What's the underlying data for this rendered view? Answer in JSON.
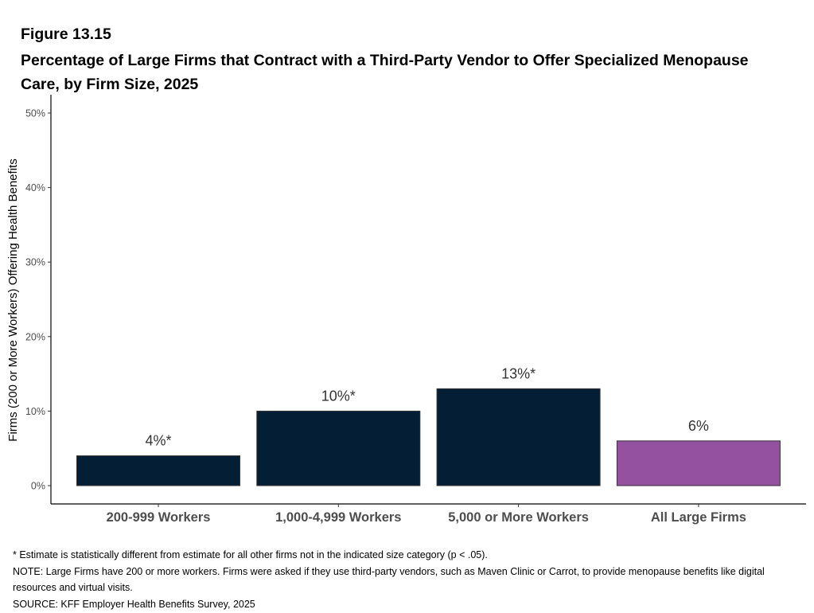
{
  "figure": {
    "label": "Figure 13.15",
    "title": "Percentage of Large Firms that Contract with a Third-Party Vendor to Offer Specialized Menopause Care, by Firm Size, 2025"
  },
  "chart_data": {
    "type": "bar",
    "categories": [
      "200-999 Workers",
      "1,000-4,999 Workers",
      "5,000 or More Workers",
      "All Large Firms"
    ],
    "values": [
      4,
      10,
      13,
      6
    ],
    "data_labels": [
      "4%*",
      "10%*",
      "13%*",
      "6%"
    ],
    "bar_colors": [
      "#041e35",
      "#041e35",
      "#041e35",
      "#93519f"
    ],
    "ylabel": "Firms (200 or More Workers) Offering Health Benefits",
    "xlabel": "",
    "ylim": [
      0,
      50
    ],
    "yticks": [
      0,
      10,
      20,
      30,
      40,
      50
    ],
    "ytick_labels": [
      "0%",
      "10%",
      "20%",
      "30%",
      "40%",
      "50%"
    ],
    "grid": false,
    "legend": "none"
  },
  "notes": {
    "asterisk": "* Estimate is statistically different from estimate for all other firms not in the indicated size category (p < .05).",
    "note": "NOTE: Large Firms have 200 or more workers.  Firms were asked if they use third-party vendors, such as Maven Clinic or Carrot, to provide menopause benefits like digital resources and virtual visits.",
    "source": "SOURCE: KFF Employer Health Benefits Survey, 2025"
  }
}
